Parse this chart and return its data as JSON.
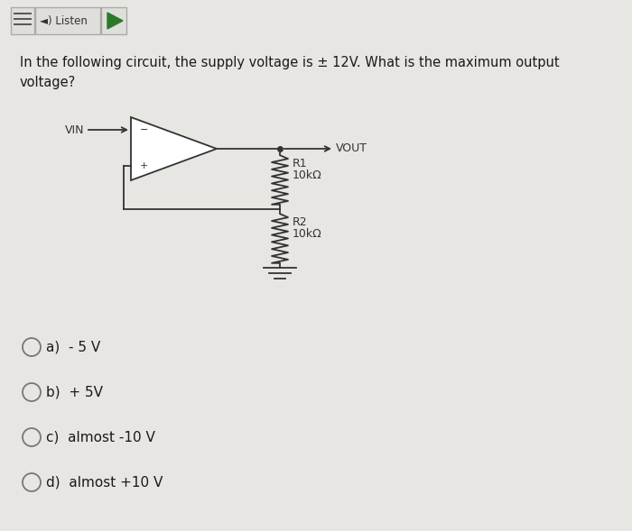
{
  "background_color": "#e8e6e2",
  "toolbar_bg": "#e0deda",
  "toolbar_border": "#aaaaaa",
  "question_text": "In the following circuit, the supply voltage is ± 12V. What is the maximum output\nvoltage?",
  "vin_label": "VIN",
  "vout_label": "VOUT",
  "r1_label": "R1",
  "r1_val": "10kΩ",
  "r2_label": "R2",
  "r2_val": "10kΩ",
  "options": [
    "a)  - 5 V",
    "b)  + 5V",
    "c)  almost -10 V",
    "d)  almost +10 V"
  ],
  "text_color": "#1a1a1a",
  "circle_color": "#555555",
  "line_color": "#333333"
}
